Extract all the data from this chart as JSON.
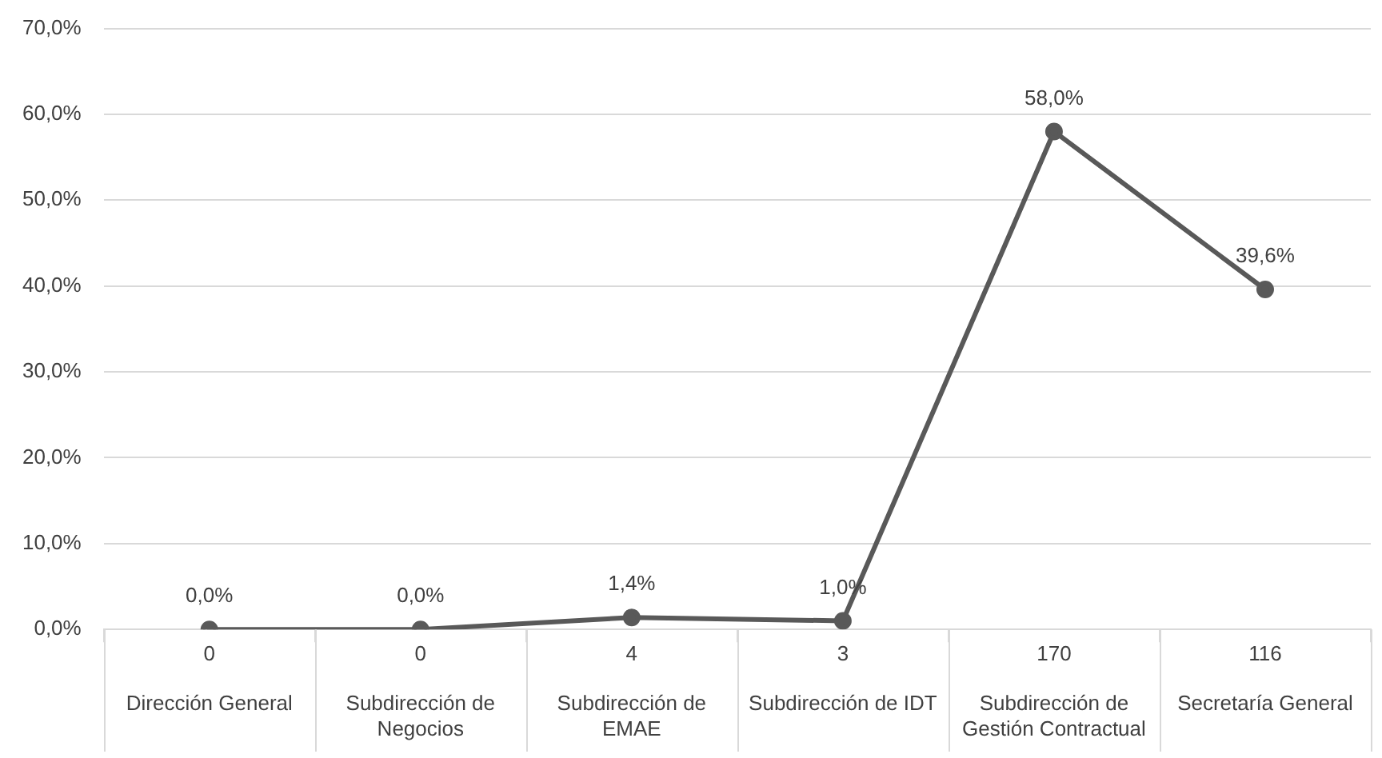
{
  "chart_data": {
    "type": "line",
    "categories": [
      "Dirección General",
      "Subdirección de Negocios",
      "Subdirección de EMAE",
      "Subdirección de IDT",
      "Subdirección de Gestión Contractual",
      "Secretaría General"
    ],
    "series": [
      {
        "color": "#595959",
        "values": [
          0.0,
          0.0,
          1.4,
          1.0,
          58.0,
          39.6
        ],
        "value_labels": [
          "0,0%",
          "0,0%",
          "1,4%",
          "1,0%",
          "58,0%",
          "39,6%"
        ]
      }
    ],
    "annotations": [
      "0",
      "0",
      "4",
      "3",
      "170",
      "116"
    ],
    "ylim": [
      0,
      70
    ],
    "yticks": [
      {
        "value": 0,
        "label": "0,0%"
      },
      {
        "value": 10,
        "label": "10,0%"
      },
      {
        "value": 20,
        "label": "20,0%"
      },
      {
        "value": 30,
        "label": "30,0%"
      },
      {
        "value": 40,
        "label": "40,0%"
      },
      {
        "value": 50,
        "label": "50,0%"
      },
      {
        "value": 60,
        "label": "60,0%"
      },
      {
        "value": 70,
        "label": "70,0%"
      }
    ],
    "grid": "y",
    "legend": false,
    "marker": "circle",
    "line_style": "solid"
  }
}
